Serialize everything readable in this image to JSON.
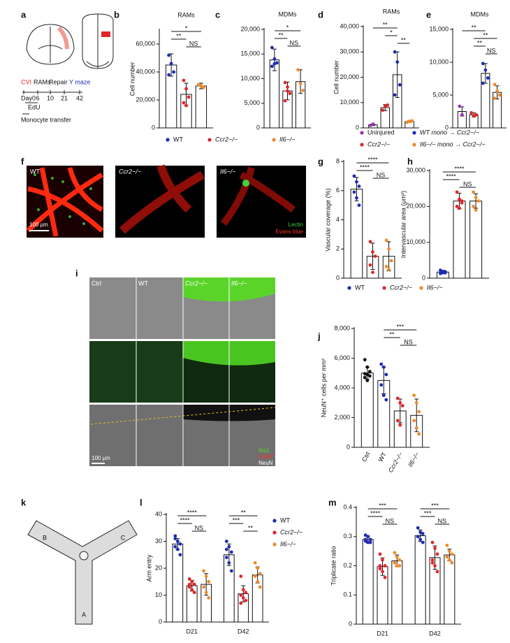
{
  "panels": {
    "letters": [
      "a",
      "b",
      "c",
      "d",
      "e",
      "f",
      "g",
      "h",
      "i",
      "j",
      "k",
      "l",
      "m"
    ],
    "panel_a": {
      "timeline": [
        "CVI",
        "RAMs",
        "Repair",
        "Y maze"
      ],
      "days": [
        "Day0",
        "6",
        "10",
        "21",
        "42"
      ],
      "edu": "EdU",
      "transfer": "Monocyte transfer"
    },
    "panel_f": {
      "labels": [
        "WT",
        "Ccr2−/−",
        "Il6−/−"
      ],
      "scale": "100 μm",
      "stains": [
        "Lectin",
        "Evans blue"
      ]
    },
    "panel_i": {
      "labels": [
        "Ctrl",
        "WT",
        "Ccr2−/−",
        "Il6−/−"
      ],
      "scale": "100 μm",
      "stains": [
        "Iba1",
        "GFAP",
        "NeuN"
      ]
    },
    "panel_k": {
      "arms": [
        "A",
        "B",
        "C"
      ]
    }
  },
  "chart_data": [
    {
      "type": "bar",
      "title": "RAMs",
      "ylabel": "Cell number",
      "ylim": [
        0,
        70000
      ],
      "yticks": [
        0,
        {
          "value": 20000,
          "label": "20,000"
        },
        {
          "value": 40000,
          "label": "40,000"
        },
        {
          "value": 60000,
          "label": "60,000"
        }
      ],
      "legend": "below",
      "series": [
        {
          "name": "WT",
          "color": "#1f2bb5",
          "values": [
            45000
          ],
          "errors": [
            8000
          ],
          "points": [
            [
              52000,
              46000,
              40000,
              38000
            ]
          ]
        },
        {
          "name": "Ccr2−/−",
          "color": "#e0262a",
          "values": [
            24000
          ],
          "errors": [
            8000
          ],
          "points": [
            [
              34000,
              28000,
              22000,
              18000,
              16000
            ]
          ]
        },
        {
          "name": "Il6−/−",
          "color": "#ef8a2c",
          "values": [
            30000
          ],
          "errors": [
            2000
          ],
          "points": [
            [
              31000,
              30000,
              29000
            ]
          ]
        }
      ],
      "significance": [
        {
          "label": "*",
          "from": 0,
          "to": 2
        },
        {
          "label": "**",
          "from": 0,
          "to": 1
        },
        {
          "label": "NS",
          "from": 1,
          "to": 2
        }
      ]
    },
    {
      "type": "bar",
      "title": "MDMs",
      "ylim": [
        0,
        20000
      ],
      "yticks": [
        0,
        {
          "value": 5000,
          "label": "5,000"
        },
        {
          "value": 10000,
          "label": "10,000"
        },
        {
          "value": 15000,
          "label": "15,000"
        },
        {
          "value": 20000,
          "label": "20,000"
        }
      ],
      "series": [
        {
          "color": "#1f2bb5",
          "values": [
            13800
          ],
          "errors": [
            2200
          ],
          "points": [
            [
              16300,
              14000,
              13200,
              12500,
              13000
            ]
          ]
        },
        {
          "color": "#e0262a",
          "values": [
            7500
          ],
          "errors": [
            1800
          ],
          "points": [
            [
              9200,
              8300,
              7000,
              5500,
              7500
            ]
          ]
        },
        {
          "color": "#ef8a2c",
          "values": [
            9400
          ],
          "errors": [
            2400
          ],
          "points": [
            [
              11800,
              9000,
              7600
            ]
          ]
        }
      ],
      "significance": [
        {
          "label": "*",
          "from": 0,
          "to": 2
        },
        {
          "label": "**",
          "from": 0,
          "to": 1
        },
        {
          "label": "NS",
          "from": 1,
          "to": 2
        }
      ]
    },
    {
      "type": "bar",
      "title": "RAMs",
      "ylabel": "Cell number",
      "ylim": [
        0,
        40000
      ],
      "yticks": [
        0,
        {
          "value": 10000,
          "label": "10,000"
        },
        {
          "value": 20000,
          "label": "20,000"
        },
        {
          "value": 30000,
          "label": "30,000"
        },
        {
          "value": 40000,
          "label": "40,000"
        }
      ],
      "legend": "below",
      "series": [
        {
          "name": "Uninjured",
          "color": "#9b32b4",
          "values": [
            1200
          ],
          "errors": [
            300
          ],
          "points": [
            [
              1000,
              1500
            ]
          ]
        },
        {
          "name": "Ccr2−/−",
          "color": "#e0262a",
          "values": [
            8000
          ],
          "errors": [
            1200
          ],
          "points": [
            [
              7000,
              8500,
              9000
            ]
          ]
        },
        {
          "name": "WT mono → Ccr2−/−",
          "color": "#1f2bb5",
          "values": [
            21000
          ],
          "errors": [
            9000
          ],
          "points": [
            [
              30000,
              26000,
              17000,
              13000
            ]
          ]
        },
        {
          "name": "Il6−/− mono → Ccr2−/−",
          "color": "#ef8a2c",
          "values": [
            2500
          ],
          "errors": [
            300
          ],
          "points": [
            [
              2200,
              2600,
              2800
            ]
          ]
        }
      ],
      "significance": [
        {
          "label": "**",
          "from": 0,
          "to": 2
        },
        {
          "label": "*",
          "from": 1,
          "to": 2
        },
        {
          "label": "**",
          "from": 2,
          "to": 3
        }
      ]
    },
    {
      "type": "bar",
      "title": "MDMs",
      "ylim": [
        0,
        15000
      ],
      "yticks": [
        0,
        {
          "value": 5000,
          "label": "5,000"
        },
        {
          "value": 10000,
          "label": "10,000"
        },
        {
          "value": 15000,
          "label": "15,000"
        }
      ],
      "series": [
        {
          "color": "#9b32b4",
          "values": [
            2500
          ],
          "errors": [
            700
          ],
          "points": [
            [
              3300,
              2000
            ]
          ]
        },
        {
          "color": "#e0262a",
          "values": [
            2000
          ],
          "errors": [
            300
          ],
          "points": [
            [
              2300,
              1800,
              2000
            ]
          ]
        },
        {
          "color": "#1f2bb5",
          "values": [
            8300
          ],
          "errors": [
            1500
          ],
          "points": [
            [
              9800,
              8800,
              7600,
              6800
            ]
          ]
        },
        {
          "color": "#ef8a2c",
          "values": [
            5400
          ],
          "errors": [
            1000
          ],
          "points": [
            [
              6600,
              5600,
              5000,
              4500
            ]
          ]
        }
      ],
      "significance": [
        {
          "label": "**",
          "from": 0,
          "to": 2
        },
        {
          "label": "**",
          "from": 1,
          "to": 3
        },
        {
          "label": "**",
          "from": 1,
          "to": 2
        },
        {
          "label": "NS",
          "from": 2,
          "to": 3
        }
      ]
    },
    {
      "type": "bar",
      "ylabel": "Vascular coverage (%)",
      "ylim": [
        0,
        8
      ],
      "yticks": [
        0,
        2,
        4,
        6,
        8
      ],
      "legend": "below",
      "series": [
        {
          "name": "WT",
          "color": "#1f2bb5",
          "values": [
            6.1
          ],
          "errors": [
            0.8
          ],
          "points": [
            [
              7.0,
              6.6,
              6.3,
              5.9,
              5.5,
              5.0
            ]
          ]
        },
        {
          "name": "Ccr2−/−",
          "color": "#e0262a",
          "values": [
            1.5
          ],
          "errors": [
            0.9
          ],
          "points": [
            [
              2.5,
              1.8,
              1.5,
              0.9,
              0.4
            ]
          ]
        },
        {
          "name": "Il6−/−",
          "color": "#ef8a2c",
          "values": [
            1.5
          ],
          "errors": [
            1.0
          ],
          "points": [
            [
              2.6,
              2.0,
              1.2,
              0.8,
              0.6
            ]
          ]
        }
      ],
      "significance": [
        {
          "label": "****",
          "from": 0,
          "to": 2
        },
        {
          "label": "****",
          "from": 0,
          "to": 1
        },
        {
          "label": "NS",
          "from": 1,
          "to": 2
        }
      ]
    },
    {
      "type": "bar",
      "ylabel": "Intervascular area (μm²)",
      "ylim": [
        0,
        30000
      ],
      "yticks": [
        0,
        {
          "value": 10000,
          "label": "10,000"
        },
        {
          "value": 20000,
          "label": "20,000"
        },
        {
          "value": 30000,
          "label": "30,000"
        }
      ],
      "series": [
        {
          "color": "#1f2bb5",
          "values": [
            1700
          ],
          "errors": [
            500
          ],
          "points": [
            [
              2200,
              1800,
              1500,
              1300,
              1600,
              1800
            ]
          ]
        },
        {
          "color": "#e0262a",
          "values": [
            21500
          ],
          "errors": [
            2200
          ],
          "points": [
            [
              24000,
              22000,
              21000,
              20000,
              19500,
              21500
            ]
          ]
        },
        {
          "color": "#ef8a2c",
          "values": [
            21500
          ],
          "errors": [
            2000
          ],
          "points": [
            [
              24000,
              22500,
              21500,
              20000,
              19000
            ]
          ]
        }
      ],
      "significance": [
        {
          "label": "****",
          "from": 0,
          "to": 2
        },
        {
          "label": "****",
          "from": 0,
          "to": 1
        },
        {
          "label": "NS",
          "from": 1,
          "to": 2
        }
      ]
    },
    {
      "type": "bar",
      "ylabel": "NeuN⁺ cells per mm²",
      "ylim": [
        0,
        8000
      ],
      "yticks": [
        0,
        {
          "value": 2000,
          "label": "2,000"
        },
        {
          "value": 4000,
          "label": "4,000"
        },
        {
          "value": 6000,
          "label": "6,000"
        },
        {
          "value": 8000,
          "label": "8,000"
        }
      ],
      "legend": "axis",
      "series": [
        {
          "name": "Ctrl",
          "color": "#111111",
          "values": [
            5000
          ],
          "errors": [
            400
          ],
          "points": [
            [
              5900,
              5400,
              5100,
              4950,
              4900,
              4800,
              4700,
              4500
            ]
          ]
        },
        {
          "name": "WT",
          "color": "#1f2bb5",
          "values": [
            4500
          ],
          "errors": [
            900
          ],
          "points": [
            [
              5600,
              5400,
              4900,
              4200,
              3500,
              3200
            ]
          ]
        },
        {
          "name": "Ccr2−/−",
          "color": "#e0262a",
          "values": [
            2450
          ],
          "errors": [
            800
          ],
          "points": [
            [
              3300,
              3000,
              2800,
              1800,
              1500
            ]
          ]
        },
        {
          "name": "Il6−/−",
          "color": "#ef8a2c",
          "values": [
            2150
          ],
          "errors": [
            1100
          ],
          "points": [
            [
              3500,
              3000,
              2400,
              1800,
              1300,
              900
            ]
          ]
        }
      ],
      "significance": [
        {
          "label": "***",
          "from": 1,
          "to": 3
        },
        {
          "label": "**",
          "from": 1,
          "to": 2
        },
        {
          "label": "NS",
          "from": 2,
          "to": 3
        }
      ]
    },
    {
      "type": "bar",
      "ylabel": "Arm entry",
      "ylim": [
        0,
        40
      ],
      "yticks": [
        0,
        10,
        20,
        30,
        40
      ],
      "categories": [
        "D21",
        "D42"
      ],
      "legend": "right",
      "series": [
        {
          "name": "WT",
          "color": "#1f2bb5",
          "values": [
            29,
            25
          ],
          "errors": [
            2,
            4
          ],
          "points": [
            [
              31,
              30,
              29,
              28,
              27,
              25,
              32
            ],
            [
              30,
              28,
              26,
              24,
              22,
              19,
              27
            ]
          ]
        },
        {
          "name": "Ccr2−/−",
          "color": "#e0262a",
          "values": [
            13.5,
            10.5
          ],
          "errors": [
            2,
            3
          ],
          "points": [
            [
              16,
              15,
              14,
              13,
              12,
              11,
              14
            ],
            [
              17,
              12,
              11,
              10,
              9,
              8,
              7
            ]
          ]
        },
        {
          "name": "Il6−/−",
          "color": "#ef8a2c",
          "values": [
            14,
            17.5
          ],
          "errors": [
            4,
            3
          ],
          "points": [
            [
              19,
              17,
              15,
              13,
              11,
              9
            ],
            [
              22,
              20,
              18,
              17,
              15,
              13
            ]
          ]
        }
      ],
      "significance": [
        {
          "label": "****",
          "category": 0,
          "from": 0,
          "to": 2
        },
        {
          "label": "****",
          "category": 0,
          "from": 0,
          "to": 1
        },
        {
          "label": "NS",
          "category": 0,
          "from": 1,
          "to": 2
        },
        {
          "label": "**",
          "category": 1,
          "from": 0,
          "to": 2
        },
        {
          "label": "***",
          "category": 1,
          "from": 0,
          "to": 1
        },
        {
          "label": "**",
          "category": 1,
          "from": 1,
          "to": 2
        }
      ]
    },
    {
      "type": "bar",
      "ylabel": "Triplicate ratio",
      "ylim": [
        0,
        0.4
      ],
      "yticks": [
        0,
        0.1,
        0.2,
        0.3,
        0.4
      ],
      "categories": [
        "D21",
        "D42"
      ],
      "series": [
        {
          "color": "#1f2bb5",
          "values": [
            0.29,
            0.303
          ],
          "errors": [
            0.012,
            0.02
          ],
          "points": [
            [
              0.305,
              0.3,
              0.29,
              0.285,
              0.28,
              0.28,
              0.29
            ],
            [
              0.33,
              0.315,
              0.31,
              0.3,
              0.29,
              0.28,
              0.3
            ]
          ]
        },
        {
          "color": "#e0262a",
          "values": [
            0.197,
            0.228
          ],
          "errors": [
            0.03,
            0.04
          ],
          "points": [
            [
              0.24,
              0.22,
              0.2,
              0.19,
              0.18,
              0.16,
              0.2
            ],
            [
              0.28,
              0.26,
              0.24,
              0.22,
              0.2,
              0.18,
              0.21
            ]
          ]
        },
        {
          "color": "#ef8a2c",
          "values": [
            0.217,
            0.237
          ],
          "errors": [
            0.02,
            0.02
          ],
          "points": [
            [
              0.245,
              0.23,
              0.22,
              0.21,
              0.2,
              0.2
            ],
            [
              0.27,
              0.25,
              0.24,
              0.23,
              0.22,
              0.21
            ]
          ]
        }
      ],
      "significance": [
        {
          "label": "***",
          "category": 0,
          "from": 0,
          "to": 2
        },
        {
          "label": "****",
          "category": 0,
          "from": 0,
          "to": 1
        },
        {
          "label": "NS",
          "category": 0,
          "from": 1,
          "to": 2
        },
        {
          "label": "***",
          "category": 1,
          "from": 0,
          "to": 2
        },
        {
          "label": "***",
          "category": 1,
          "from": 0,
          "to": 1
        },
        {
          "label": "NS",
          "category": 1,
          "from": 1,
          "to": 2
        }
      ]
    }
  ]
}
